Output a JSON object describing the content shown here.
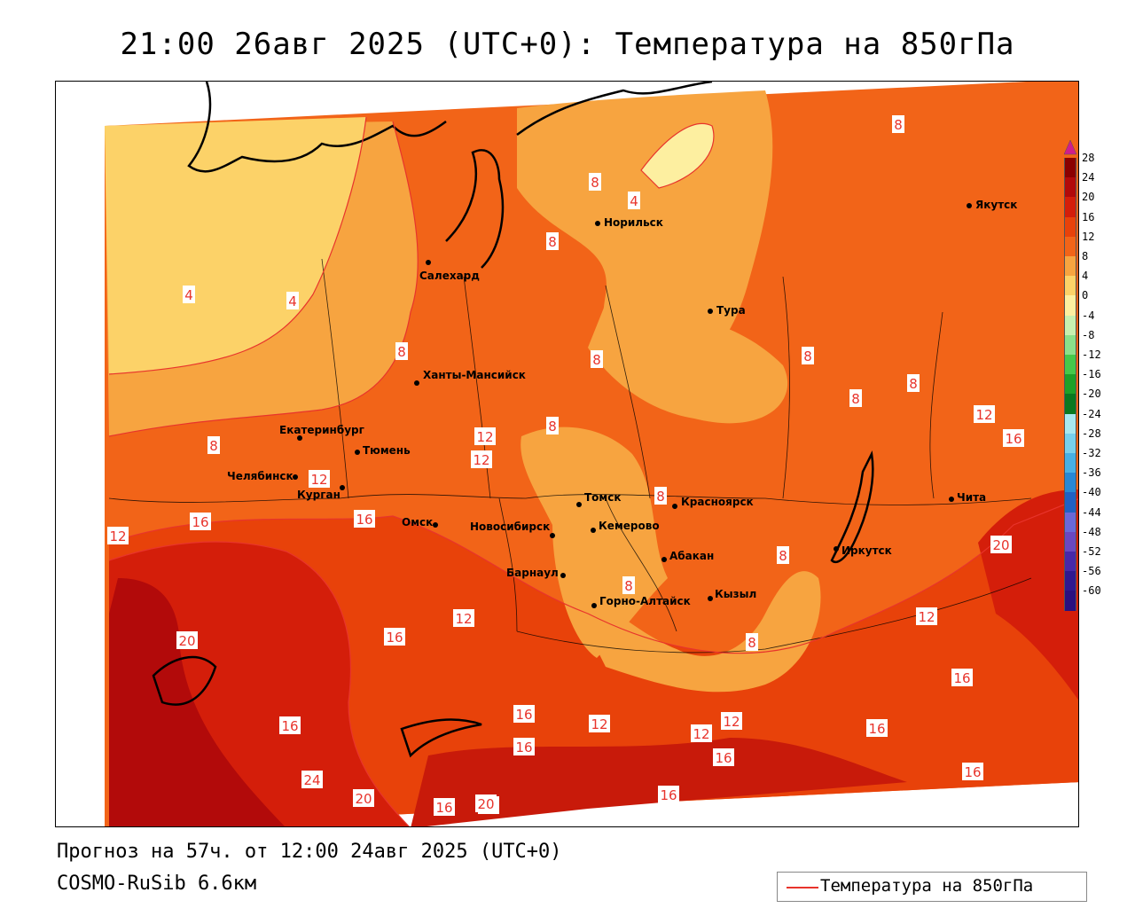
{
  "title": "21:00 26авг 2025 (UTC+0): Температура на 850гПа",
  "forecast_line": "Прогноз на 57ч. от 12:00 24авг 2025 (UTC+0)",
  "model_line": "COSMO-RuSib 6.6км",
  "legend": {
    "label": "Температура на 850гПа",
    "color": "#e8342c"
  },
  "colorbar": {
    "labels": [
      "28",
      "24",
      "20",
      "16",
      "12",
      "8",
      "4",
      "0",
      "-4",
      "-8",
      "-12",
      "-16",
      "-20",
      "-24",
      "-28",
      "-32",
      "-36",
      "-40",
      "-44",
      "-48",
      "-52",
      "-56",
      "-60"
    ],
    "colors": [
      "#8b0000",
      "#b20a0a",
      "#d41e0a",
      "#e8420a",
      "#f26418",
      "#f7a440",
      "#fcd268",
      "#fdefa0",
      "#c8f0b0",
      "#8be08a",
      "#46c84a",
      "#1ea028",
      "#0a7820",
      "#a8e8f0",
      "#78d0ec",
      "#48b0e4",
      "#2888d4",
      "#2060c4",
      "#6a68d8",
      "#6a48c0",
      "#4828a8",
      "#301890",
      "#2a1080"
    ]
  },
  "cities": [
    {
      "name": "Норильск"
    },
    {
      "name": "Якутск"
    },
    {
      "name": "Салехард"
    },
    {
      "name": "Тура"
    },
    {
      "name": "Ханты-Мансийск"
    },
    {
      "name": "Екатеринбург"
    },
    {
      "name": "Тюмень"
    },
    {
      "name": "Челябинск"
    },
    {
      "name": "Курган"
    },
    {
      "name": "Омск"
    },
    {
      "name": "Новосибирск"
    },
    {
      "name": "Томск"
    },
    {
      "name": "Кемерово"
    },
    {
      "name": "Красноярск"
    },
    {
      "name": "Барнаул"
    },
    {
      "name": "Абакан"
    },
    {
      "name": "Горно-Алтайск"
    },
    {
      "name": "Кызыл"
    },
    {
      "name": "Иркутск"
    },
    {
      "name": "Чита"
    }
  ],
  "isotherm_labels": [
    "8",
    "4",
    "8",
    "4",
    "4",
    "8",
    "8",
    "8",
    "8",
    "8",
    "8",
    "8",
    "12",
    "16",
    "8",
    "12",
    "12",
    "12",
    "16",
    "16",
    "8",
    "8",
    "12",
    "16",
    "12",
    "20",
    "16",
    "12",
    "20",
    "16",
    "16",
    "12",
    "12",
    "12",
    "16",
    "16",
    "24",
    "20",
    "16",
    "20",
    "16",
    "16",
    "16",
    "8",
    "20",
    "8"
  ]
}
